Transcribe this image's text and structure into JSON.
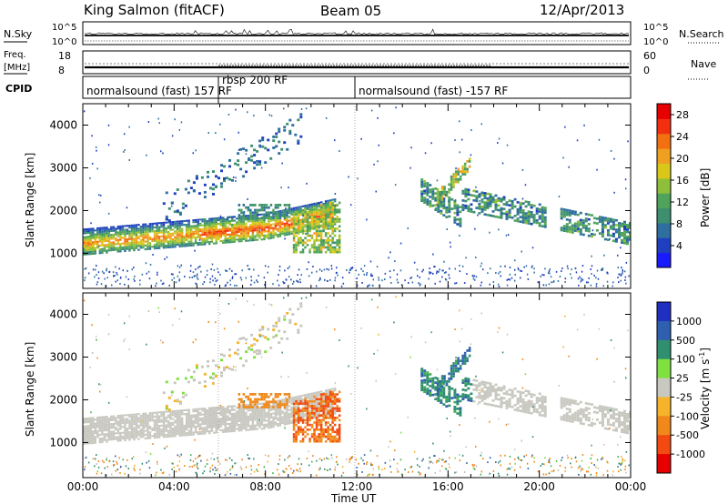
{
  "header": {
    "station": "King Salmon (fitACF)",
    "beam": "Beam 05",
    "date": "12/Apr/2013"
  },
  "labels": {
    "nsky": "N.Sky",
    "nsearch": "N.Search",
    "freq_line1": "Freq.",
    "freq_line2": "[MHz]",
    "nave": "Nave",
    "cpid": "CPID",
    "noise_left_top": "10^5",
    "noise_left_bottom": "10^0",
    "noise_right_top": "10^5",
    "noise_right_bottom": "10^0",
    "freq_left_top": "18",
    "freq_left_bottom": "8",
    "nave_right_top": "60",
    "nave_right_bottom": "0",
    "xlabel": "Time UT",
    "ylabel_range": "Slant Range [km]",
    "power_label": "Power [dB]",
    "velocity_label": "Velocity [m s",
    "velocity_label_exp": "-1",
    "velocity_label_end": "]"
  },
  "cpid_segments": [
    {
      "label": "normalsound (fast) 157 RF",
      "start_hour": 0,
      "end_hour": 6.0
    },
    {
      "label": "rbsp 200 RF",
      "start_hour": 6.0,
      "end_hour": 12.0
    },
    {
      "label": "normalsound (fast) -157 RF",
      "start_hour": 12.0,
      "end_hour": 24.0
    }
  ],
  "colors": {
    "power_scale": [
      "#1a1aff",
      "#1f3fbf",
      "#2f6f9f",
      "#3d8f6f",
      "#4fa35a",
      "#8fbf3a",
      "#d9c81a",
      "#f0a020",
      "#f27010",
      "#f23010",
      "#e60000"
    ],
    "velocity_scale": [
      "#e60000",
      "#f24a10",
      "#f0891a",
      "#f5b42a",
      "#bfbfbf",
      "#bfbfbf",
      "#7fe040",
      "#3fb04a",
      "#2f8f6f",
      "#2f5faf",
      "#1f2fbf"
    ]
  },
  "chart_data": [
    {
      "type": "heatmap",
      "name": "power-panel",
      "title": "",
      "xlabel": "Time UT",
      "ylabel": "Slant Range [km]",
      "x_ticks": [
        "00:00",
        "04:00",
        "08:00",
        "12:00",
        "16:00",
        "20:00",
        "00:00"
      ],
      "x_range_hours": [
        0,
        24
      ],
      "y_ticks": [
        1000,
        2000,
        3000,
        4000
      ],
      "ylim_km": [
        180,
        4500
      ],
      "colorbar": {
        "label": "Power [dB]",
        "ticks": [
          4,
          8,
          12,
          16,
          20,
          24,
          28
        ],
        "range": [
          0,
          30
        ]
      },
      "features": [
        {
          "desc": "main band",
          "t_start": 0,
          "t_end": 11,
          "range_start_km": 1200,
          "range_end_km": 1900,
          "value_db": 22
        },
        {
          "desc": "late band",
          "t_start": 16,
          "t_end": 24,
          "range_start_km": 2200,
          "range_end_km": 1300,
          "value_db": 10
        }
      ]
    },
    {
      "type": "heatmap",
      "name": "velocity-panel",
      "title": "",
      "xlabel": "Time UT",
      "ylabel": "Slant Range [km]",
      "x_ticks": [
        "00:00",
        "04:00",
        "08:00",
        "12:00",
        "16:00",
        "20:00",
        "00:00"
      ],
      "x_range_hours": [
        0,
        24
      ],
      "y_ticks": [
        1000,
        2000,
        3000,
        4000
      ],
      "ylim_km": [
        180,
        4500
      ],
      "colorbar": {
        "label": "Velocity [m s-1]",
        "ticks": [
          1000,
          500,
          100,
          25,
          -25,
          -100,
          -500,
          -1000
        ],
        "range": [
          -1000,
          1000
        ]
      },
      "features": [
        {
          "desc": "ground scatter band",
          "t_start": 0,
          "t_end": 11,
          "range_start_km": 1200,
          "range_end_km": 1900,
          "velocity": 0
        },
        {
          "desc": "negative patch",
          "t_start": 9,
          "t_end": 11,
          "range_start_km": 1000,
          "range_end_km": 2100,
          "velocity": -300
        }
      ]
    }
  ]
}
